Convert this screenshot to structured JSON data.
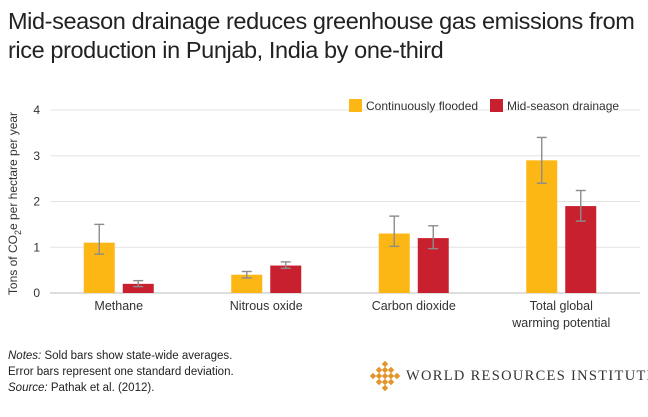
{
  "chart_data": {
    "type": "bar",
    "title": "Mid-season drainage reduces greenhouse gas emissions from rice production in Punjab, India by one-third",
    "ylabel_parts": [
      "Tons of CO",
      "2",
      "e per hectare per year"
    ],
    "xlabel": "",
    "ylim": [
      0,
      4
    ],
    "yticks": [
      0,
      1,
      2,
      3,
      4
    ],
    "grid": true,
    "legend_position": "top-right",
    "categories": [
      [
        "Methane"
      ],
      [
        "Nitrous oxide"
      ],
      [
        "Carbon dioxide"
      ],
      [
        "Total global",
        "warming potential"
      ]
    ],
    "series": [
      {
        "name": "Continuously flooded",
        "color": "#fdb714",
        "values": [
          1.1,
          0.4,
          1.3,
          2.9
        ],
        "error_low": [
          0.85,
          0.33,
          1.02,
          2.4
        ],
        "error_high": [
          1.5,
          0.47,
          1.68,
          3.4
        ]
      },
      {
        "name": "Mid-season drainage",
        "color": "#c9202f",
        "values": [
          0.2,
          0.6,
          1.2,
          1.9
        ],
        "error_low": [
          0.14,
          0.54,
          0.97,
          1.57
        ],
        "error_high": [
          0.27,
          0.68,
          1.47,
          2.24
        ]
      }
    ]
  },
  "notes": {
    "notes_label": "Notes:",
    "line1": " Sold bars show state-wide averages.",
    "line2": "Error bars represent one standard deviation.",
    "source_label": "Source:",
    "source_text": " Pathak et al. (2012)."
  },
  "logo": {
    "text": "WORLD RESOURCES INSTITUTE",
    "color": "#e5952b"
  }
}
